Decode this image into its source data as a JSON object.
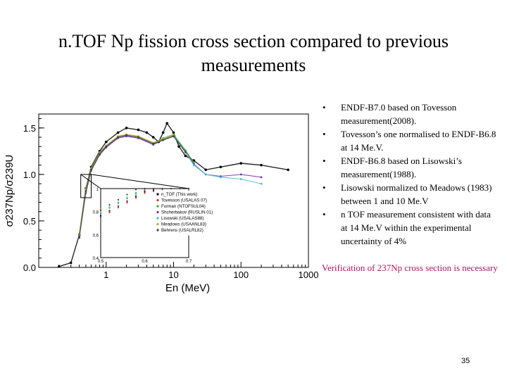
{
  "slide": {
    "title": "n.TOF Np fission cross section compared to previous measurements",
    "bullets": [
      {
        "text": "ENDF-B7.0 based on Tovesson measurement(2008)."
      },
      {
        "text": "Tovesson’s one normalised to ENDF-B6.8 at 14 Me.V."
      },
      {
        "text": "ENDF-B6.8 based on Lisowski’s measurement(1988)."
      },
      {
        "text": "Lisowski normalized to Meadows (1983) between 1 and 10 Me.V"
      },
      {
        "text": "n TOF measurement consistent with data at 14 Me.V within the experimental uncertainty of 4%"
      }
    ],
    "bullet_symbol": "•",
    "note": "Verification of 237Np cross section is necessary",
    "note_color": "#a8175f",
    "page_number": "35"
  },
  "chart_data": {
    "type": "scatter",
    "title": "",
    "xlabel": "En (MeV)",
    "ylabel": "σ237Np/σ239U",
    "xscale": "log",
    "xlim": [
      0.1,
      1000
    ],
    "ylim": [
      0,
      1.65
    ],
    "xticks": [
      "1",
      "10",
      "100",
      "1000"
    ],
    "yticks": [
      "0.0",
      "0.5",
      "1.0",
      "1.5"
    ],
    "series": [
      {
        "name": "n_TOF (This work)",
        "color": "#000000",
        "x": [
          0.2,
          0.3,
          0.4,
          0.5,
          0.6,
          0.8,
          1,
          1.5,
          2,
          3,
          4,
          5,
          6,
          7,
          8,
          10,
          12,
          15,
          20,
          30,
          50,
          100,
          200,
          500
        ],
        "y": [
          0.01,
          0.05,
          0.35,
          0.85,
          1.08,
          1.25,
          1.35,
          1.45,
          1.5,
          1.48,
          1.45,
          1.4,
          1.35,
          1.45,
          1.55,
          1.45,
          1.3,
          1.2,
          1.15,
          1.05,
          1.08,
          1.12,
          1.1,
          1.05
        ]
      },
      {
        "name": "Tovesson (USALAS 07)",
        "color": "#d03030",
        "x": [
          0.4,
          0.5,
          0.6,
          0.8,
          1,
          1.5,
          2,
          3,
          5,
          7,
          10,
          15,
          20
        ],
        "y": [
          0.33,
          0.82,
          1.05,
          1.22,
          1.3,
          1.4,
          1.42,
          1.4,
          1.33,
          1.38,
          1.42,
          1.25,
          1.12
        ]
      },
      {
        "name": "Furman (NTOFSUL04)",
        "color": "#30b030",
        "x": [
          0.4,
          0.5,
          0.6,
          0.8,
          1,
          1.5,
          2,
          3,
          5,
          7,
          10,
          15,
          20
        ],
        "y": [
          0.36,
          0.85,
          1.07,
          1.24,
          1.31,
          1.41,
          1.43,
          1.41,
          1.34,
          1.39,
          1.43,
          1.26,
          1.13
        ]
      },
      {
        "name": "Shcherbakov (RUSLIN 01)",
        "color": "#7030b0",
        "x": [
          0.4,
          0.5,
          0.6,
          0.8,
          1,
          1.5,
          2,
          3,
          5,
          7,
          10,
          15,
          20,
          30,
          50,
          100,
          200
        ],
        "y": [
          0.32,
          0.8,
          1.04,
          1.21,
          1.29,
          1.39,
          1.41,
          1.39,
          1.32,
          1.37,
          1.41,
          1.24,
          1.11,
          1.0,
          0.98,
          1.0,
          0.97
        ]
      },
      {
        "name": "Lisowski (USALAS88)",
        "color": "#40b8d0",
        "x": [
          0.4,
          0.5,
          0.6,
          0.8,
          1,
          1.5,
          2,
          3,
          5,
          7,
          10,
          15,
          20,
          30,
          50,
          100,
          200
        ],
        "y": [
          0.34,
          0.83,
          1.05,
          1.23,
          1.3,
          1.4,
          1.42,
          1.4,
          1.33,
          1.38,
          1.42,
          1.24,
          1.1,
          1.0,
          0.97,
          0.95,
          0.9
        ]
      },
      {
        "name": "Meadows (USAANL83)",
        "color": "#c8a020",
        "x": [
          0.4,
          0.5,
          0.6,
          0.8,
          1,
          1.5,
          2,
          3,
          5,
          7,
          10
        ],
        "y": [
          0.35,
          0.84,
          1.06,
          1.23,
          1.31,
          1.41,
          1.43,
          1.41,
          1.34,
          1.38,
          1.42
        ]
      },
      {
        "name": "Behrens (USALRL82)",
        "color": "#404040",
        "x": [
          0.4,
          0.5,
          0.6,
          0.8,
          1,
          1.5,
          2,
          3,
          5,
          7,
          10,
          15
        ],
        "y": [
          0.33,
          0.82,
          1.05,
          1.22,
          1.3,
          1.4,
          1.42,
          1.4,
          1.33,
          1.37,
          1.41,
          1.24
        ]
      }
    ],
    "inset": {
      "xlim": [
        0.5,
        0.7
      ],
      "ylim": [
        0.4,
        1.0
      ],
      "xticks": [
        "0.5",
        "0.6",
        "0.7"
      ],
      "yticks": [
        "0.4",
        "0.6",
        "0.8",
        "1"
      ],
      "legend": [
        "n_TOF (This work)",
        "Tovesson (USALAS 07)",
        "Furman (NTOFSUL04)",
        "Shcherbakov (RUSLIN 01)",
        "Lisowski (USALAS88)",
        "Meadows (USAANL83)",
        "Behrens (USALRL82)"
      ]
    }
  }
}
